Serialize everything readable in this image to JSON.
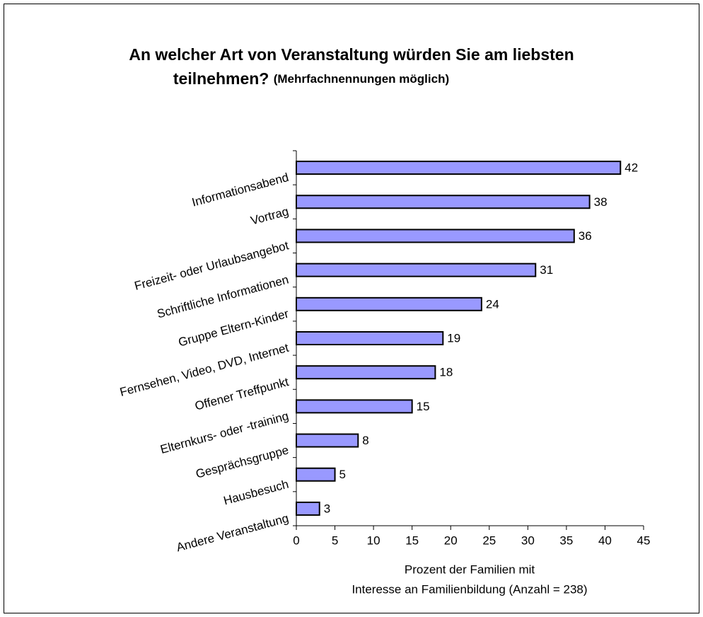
{
  "chart_data": {
    "type": "bar",
    "orientation": "horizontal",
    "title": [
      "An welcher Art von Veranstaltung würden Sie am liebsten",
      "teilnehmen?"
    ],
    "subtitle": "(Mehrfachnennungen möglich)",
    "categories": [
      "Informationsabend",
      "Vortrag",
      "Freizeit- oder Urlaubsangebot",
      "Schriftliche Informationen",
      "Gruppe Eltern-Kinder",
      "Fernsehen, Video, DVD, Internet",
      "Offener Treffpunkt",
      "Elternkurs- oder -training",
      "Gesprächsgruppe",
      "Hausbesuch",
      "Andere Veranstaltung"
    ],
    "values": [
      42,
      38,
      36,
      31,
      24,
      19,
      18,
      15,
      8,
      5,
      3
    ],
    "color": "#9999ff",
    "xlim": [
      0,
      45
    ],
    "xticks": [
      0,
      5,
      10,
      15,
      20,
      25,
      30,
      35,
      40,
      45
    ],
    "xlabel": [
      "Prozent der Familien mit",
      "Interesse an Familienbildung (Anzahl = 238)"
    ],
    "grid": false
  }
}
